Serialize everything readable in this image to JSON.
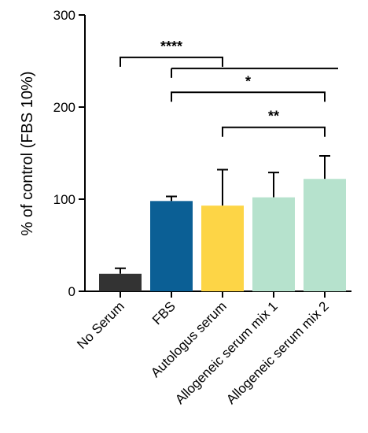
{
  "chart_data": {
    "type": "bar",
    "ylabel": "% of control (FBS 10%)",
    "ylim": [
      0,
      300
    ],
    "yticks": [
      0,
      100,
      200,
      300
    ],
    "grid": false,
    "categories": [
      "No Serum",
      "FBS",
      "Autologus serum",
      "Allogeneic serum mix 1",
      "Allogeneic serum mix 2"
    ],
    "values": [
      19,
      98,
      93,
      102,
      122
    ],
    "errors": [
      6,
      5,
      39,
      27,
      25
    ],
    "colors": [
      "#333333",
      "#0b5f95",
      "#fdd546",
      "#b6e2cd",
      "#b6e2cd"
    ],
    "significance": [
      {
        "label": "****",
        "from": 0,
        "to": 2,
        "y": 254,
        "side_line_from": 1,
        "side_line_to": 4,
        "side_line_y": 242
      },
      {
        "label": "*",
        "from": 1,
        "to": 4,
        "y": 216
      },
      {
        "label": "**",
        "from": 2,
        "to": 4,
        "y": 178
      }
    ]
  }
}
